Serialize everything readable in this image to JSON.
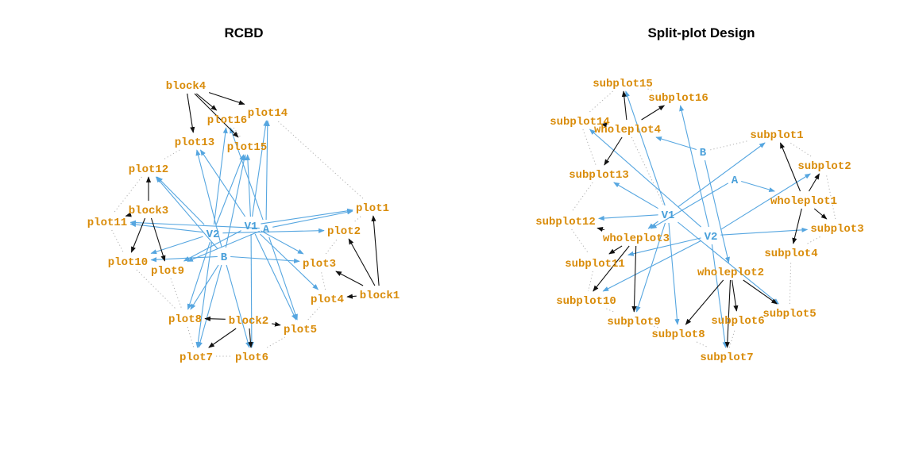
{
  "colors": {
    "unit_node": "#d98c0a",
    "treatment_node": "#4aa0da",
    "treatment_edge": "#56a6e0",
    "structure_edge": "#111111",
    "neighbor_edge": "#b0b0b0"
  },
  "panels": [
    {
      "id": "rcbd",
      "title": "RCBD",
      "nodes": [
        {
          "id": "block4",
          "label": "block4",
          "kind": "unit"
        },
        {
          "id": "plot16",
          "label": "plot16",
          "kind": "unit"
        },
        {
          "id": "plot14",
          "label": "plot14",
          "kind": "unit"
        },
        {
          "id": "plot13",
          "label": "plot13",
          "kind": "unit"
        },
        {
          "id": "plot15",
          "label": "plot15",
          "kind": "unit"
        },
        {
          "id": "plot12",
          "label": "plot12",
          "kind": "unit"
        },
        {
          "id": "block3",
          "label": "block3",
          "kind": "unit"
        },
        {
          "id": "plot11",
          "label": "plot11",
          "kind": "unit"
        },
        {
          "id": "plot10",
          "label": "plot10",
          "kind": "unit"
        },
        {
          "id": "plot9",
          "label": "plot9",
          "kind": "unit"
        },
        {
          "id": "V2",
          "label": "V2",
          "kind": "treatment"
        },
        {
          "id": "V1",
          "label": "V1",
          "kind": "treatment"
        },
        {
          "id": "A",
          "label": "A",
          "kind": "treatment"
        },
        {
          "id": "B",
          "label": "B",
          "kind": "treatment"
        },
        {
          "id": "plot1",
          "label": "plot1",
          "kind": "unit"
        },
        {
          "id": "plot2",
          "label": "plot2",
          "kind": "unit"
        },
        {
          "id": "plot3",
          "label": "plot3",
          "kind": "unit"
        },
        {
          "id": "block1",
          "label": "block1",
          "kind": "unit"
        },
        {
          "id": "plot4",
          "label": "plot4",
          "kind": "unit"
        },
        {
          "id": "plot8",
          "label": "plot8",
          "kind": "unit"
        },
        {
          "id": "block2",
          "label": "block2",
          "kind": "unit"
        },
        {
          "id": "plot5",
          "label": "plot5",
          "kind": "unit"
        },
        {
          "id": "plot7",
          "label": "plot7",
          "kind": "unit"
        },
        {
          "id": "plot6",
          "label": "plot6",
          "kind": "unit"
        }
      ],
      "structure_edges": [
        [
          "block4",
          "plot16"
        ],
        [
          "block4",
          "plot14"
        ],
        [
          "block4",
          "plot13"
        ],
        [
          "block4",
          "plot15"
        ],
        [
          "block3",
          "plot12"
        ],
        [
          "block3",
          "plot11"
        ],
        [
          "block3",
          "plot10"
        ],
        [
          "block3",
          "plot9"
        ],
        [
          "block1",
          "plot1"
        ],
        [
          "block1",
          "plot2"
        ],
        [
          "block1",
          "plot3"
        ],
        [
          "block1",
          "plot4"
        ],
        [
          "block2",
          "plot8"
        ],
        [
          "block2",
          "plot7"
        ],
        [
          "block2",
          "plot6"
        ],
        [
          "block2",
          "plot5"
        ]
      ],
      "treatment_edges": [
        [
          "V1",
          "plot1"
        ],
        [
          "V1",
          "plot3"
        ],
        [
          "V1",
          "plot4"
        ],
        [
          "V1",
          "plot5"
        ],
        [
          "V1",
          "plot6"
        ],
        [
          "V1",
          "plot9"
        ],
        [
          "V1",
          "plot13"
        ],
        [
          "V1",
          "plot14"
        ],
        [
          "V1",
          "plot15"
        ],
        [
          "V2",
          "plot2"
        ],
        [
          "V2",
          "plot7"
        ],
        [
          "V2",
          "plot8"
        ],
        [
          "V2",
          "plot10"
        ],
        [
          "V2",
          "plot11"
        ],
        [
          "V2",
          "plot12"
        ],
        [
          "V2",
          "plot15"
        ],
        [
          "V2",
          "plot16"
        ],
        [
          "A",
          "plot1"
        ],
        [
          "A",
          "plot5"
        ],
        [
          "A",
          "plot9"
        ],
        [
          "A",
          "plot11"
        ],
        [
          "A",
          "plot14"
        ],
        [
          "A",
          "plot16"
        ],
        [
          "B",
          "plot3"
        ],
        [
          "B",
          "plot6"
        ],
        [
          "B",
          "plot7"
        ],
        [
          "B",
          "plot8"
        ],
        [
          "B",
          "plot10"
        ],
        [
          "B",
          "plot12"
        ],
        [
          "B",
          "plot13"
        ],
        [
          "B",
          "plot15"
        ]
      ],
      "neighbor_edges": [
        [
          "block4",
          "plot13"
        ],
        [
          "plot13",
          "plot12"
        ],
        [
          "plot12",
          "plot11"
        ],
        [
          "plot11",
          "plot10"
        ],
        [
          "plot10",
          "plot8"
        ],
        [
          "plot8",
          "plot7"
        ],
        [
          "plot7",
          "plot6"
        ],
        [
          "plot6",
          "plot5"
        ],
        [
          "plot5",
          "plot4"
        ],
        [
          "plot4",
          "plot3"
        ],
        [
          "plot3",
          "plot2"
        ],
        [
          "plot2",
          "plot1"
        ],
        [
          "plot14",
          "block4"
        ],
        [
          "plot16",
          "plot15"
        ],
        [
          "plot9",
          "plot8"
        ],
        [
          "plot1",
          "plot14"
        ]
      ]
    },
    {
      "id": "splitplot",
      "title": "Split-plot Design",
      "nodes": [
        {
          "id": "subplot15",
          "label": "subplot15",
          "kind": "unit"
        },
        {
          "id": "subplot16",
          "label": "subplot16",
          "kind": "unit"
        },
        {
          "id": "subplot14",
          "label": "subplot14",
          "kind": "unit"
        },
        {
          "id": "wholeplot4",
          "label": "wholeplot4",
          "kind": "unit"
        },
        {
          "id": "subplot13",
          "label": "subplot13",
          "kind": "unit"
        },
        {
          "id": "subplot1",
          "label": "subplot1",
          "kind": "unit"
        },
        {
          "id": "B",
          "label": "B",
          "kind": "treatment"
        },
        {
          "id": "subplot2",
          "label": "subplot2",
          "kind": "unit"
        },
        {
          "id": "A",
          "label": "A",
          "kind": "treatment"
        },
        {
          "id": "wholeplot1",
          "label": "wholeplot1",
          "kind": "unit"
        },
        {
          "id": "subplot12",
          "label": "subplot12",
          "kind": "unit"
        },
        {
          "id": "V1",
          "label": "V1",
          "kind": "treatment"
        },
        {
          "id": "subplot3",
          "label": "subplot3",
          "kind": "unit"
        },
        {
          "id": "wholeplot3",
          "label": "wholeplot3",
          "kind": "unit"
        },
        {
          "id": "V2",
          "label": "V2",
          "kind": "treatment"
        },
        {
          "id": "subplot4",
          "label": "subplot4",
          "kind": "unit"
        },
        {
          "id": "subplot11",
          "label": "subplot11",
          "kind": "unit"
        },
        {
          "id": "wholeplot2",
          "label": "wholeplot2",
          "kind": "unit"
        },
        {
          "id": "subplot10",
          "label": "subplot10",
          "kind": "unit"
        },
        {
          "id": "subplot5",
          "label": "subplot5",
          "kind": "unit"
        },
        {
          "id": "subplot9",
          "label": "subplot9",
          "kind": "unit"
        },
        {
          "id": "subplot6",
          "label": "subplot6",
          "kind": "unit"
        },
        {
          "id": "subplot8",
          "label": "subplot8",
          "kind": "unit"
        },
        {
          "id": "subplot7",
          "label": "subplot7",
          "kind": "unit"
        }
      ],
      "structure_edges": [
        [
          "wholeplot4",
          "subplot15"
        ],
        [
          "wholeplot4",
          "subplot16"
        ],
        [
          "wholeplot4",
          "subplot14"
        ],
        [
          "wholeplot4",
          "subplot13"
        ],
        [
          "wholeplot1",
          "subplot1"
        ],
        [
          "wholeplot1",
          "subplot2"
        ],
        [
          "wholeplot1",
          "subplot3"
        ],
        [
          "wholeplot1",
          "subplot4"
        ],
        [
          "wholeplot3",
          "subplot12"
        ],
        [
          "wholeplot3",
          "subplot11"
        ],
        [
          "wholeplot3",
          "subplot10"
        ],
        [
          "wholeplot3",
          "subplot9"
        ],
        [
          "wholeplot2",
          "subplot5"
        ],
        [
          "wholeplot2",
          "subplot6"
        ],
        [
          "wholeplot2",
          "subplot7"
        ],
        [
          "wholeplot2",
          "subplot8"
        ]
      ],
      "treatment_edges": [
        [
          "V1",
          "subplot15"
        ],
        [
          "V1",
          "subplot13"
        ],
        [
          "V1",
          "subplot12"
        ],
        [
          "V1",
          "subplot1"
        ],
        [
          "V1",
          "subplot5"
        ],
        [
          "V1",
          "subplot8"
        ],
        [
          "V1",
          "subplot9"
        ],
        [
          "V1",
          "wholeplot3"
        ],
        [
          "V2",
          "subplot14"
        ],
        [
          "V2",
          "subplot16"
        ],
        [
          "V2",
          "subplot2"
        ],
        [
          "V2",
          "subplot3"
        ],
        [
          "V2",
          "subplot7"
        ],
        [
          "V2",
          "subplot10"
        ],
        [
          "V2",
          "subplot11"
        ],
        [
          "A",
          "wholeplot1"
        ],
        [
          "A",
          "wholeplot3"
        ],
        [
          "B",
          "wholeplot4"
        ],
        [
          "B",
          "wholeplot2"
        ]
      ],
      "neighbor_edges": [
        [
          "subplot15",
          "subplot16"
        ],
        [
          "subplot15",
          "subplot14"
        ],
        [
          "subplot14",
          "subplot13"
        ],
        [
          "subplot13",
          "subplot12"
        ],
        [
          "subplot12",
          "subplot11"
        ],
        [
          "subplot11",
          "subplot10"
        ],
        [
          "subplot10",
          "subplot9"
        ],
        [
          "subplot9",
          "subplot8"
        ],
        [
          "subplot8",
          "subplot7"
        ],
        [
          "subplot7",
          "subplot6"
        ],
        [
          "subplot6",
          "subplot5"
        ],
        [
          "subplot5",
          "subplot4"
        ],
        [
          "subplot4",
          "subplot3"
        ],
        [
          "subplot3",
          "subplot2"
        ],
        [
          "subplot2",
          "subplot1"
        ],
        [
          "subplot1",
          "B"
        ],
        [
          "wholeplot4",
          "V1"
        ],
        [
          "wholeplot2",
          "subplot8"
        ]
      ]
    }
  ]
}
